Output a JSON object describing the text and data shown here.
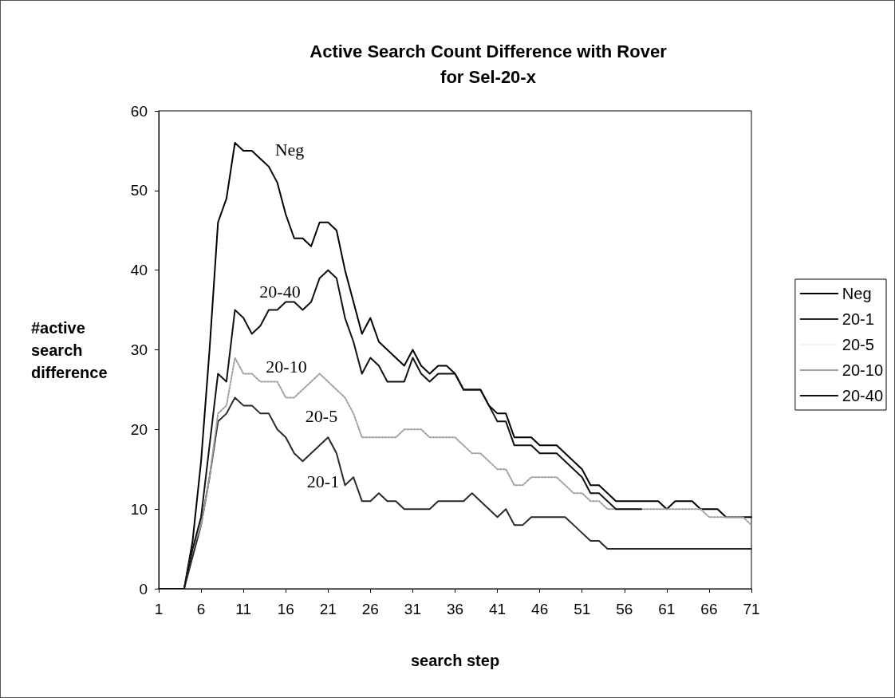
{
  "chart_data": {
    "type": "line",
    "title": "Active Search Count Difference with Rover\nfor Sel-20-x",
    "xlabel": "search step",
    "ylabel": "#active search difference",
    "x": [
      1,
      2,
      3,
      4,
      5,
      6,
      7,
      8,
      9,
      10,
      11,
      12,
      13,
      14,
      15,
      16,
      17,
      18,
      19,
      20,
      21,
      22,
      23,
      24,
      25,
      26,
      27,
      28,
      29,
      30,
      31,
      32,
      33,
      34,
      35,
      36,
      37,
      38,
      39,
      40,
      41,
      42,
      43,
      44,
      45,
      46,
      47,
      48,
      49,
      50,
      51,
      52,
      53,
      54,
      55,
      56,
      57,
      58,
      59,
      60,
      61,
      62,
      63,
      64,
      65,
      66,
      67,
      68,
      69,
      70,
      71
    ],
    "xlim": [
      1,
      71
    ],
    "xticks": [
      1,
      6,
      11,
      16,
      21,
      26,
      31,
      36,
      41,
      46,
      51,
      56,
      61,
      66,
      71
    ],
    "ylim": [
      0,
      60
    ],
    "yticks": [
      0,
      10,
      20,
      30,
      40,
      50,
      60
    ],
    "grid": false,
    "legend": "right",
    "marker": "none",
    "series": [
      {
        "name": "Neg",
        "color": "#000000",
        "line_style": "solid",
        "values": [
          0,
          0,
          0,
          0,
          6,
          16,
          30,
          46,
          49,
          56,
          55,
          55,
          54,
          53,
          51,
          47,
          44,
          44,
          43,
          46,
          46,
          45,
          40,
          36,
          32,
          34,
          31,
          30,
          29,
          28,
          30,
          28,
          27,
          28,
          28,
          27,
          25,
          25,
          25,
          23,
          22,
          22,
          19,
          19,
          19,
          18,
          18,
          18,
          17,
          16,
          15,
          13,
          13,
          12,
          11,
          11,
          11,
          11,
          11,
          11,
          10,
          11,
          11,
          11,
          10,
          10,
          10,
          9,
          9,
          9,
          9
        ]
      },
      {
        "name": "20-1",
        "color": "#2a2a2a",
        "line_style": "solid",
        "values": [
          0,
          0,
          0,
          0,
          4,
          8,
          14,
          21,
          22,
          24,
          23,
          23,
          22,
          22,
          20,
          19,
          17,
          16,
          17,
          18,
          19,
          17,
          13,
          14,
          11,
          11,
          12,
          11,
          11,
          10,
          10,
          10,
          10,
          11,
          11,
          11,
          11,
          12,
          11,
          10,
          9,
          10,
          8,
          8,
          9,
          9,
          9,
          9,
          9,
          8,
          7,
          6,
          6,
          5,
          5,
          5,
          5,
          5,
          5,
          5,
          5,
          5,
          5,
          5,
          5,
          5,
          5,
          5,
          5,
          5,
          5
        ]
      },
      {
        "name": "20-5",
        "color": "#f4f4f4",
        "line_style": "solid",
        "values": [
          null,
          null,
          null,
          null,
          null,
          null,
          null,
          null,
          null,
          null,
          null,
          null,
          null,
          null,
          null,
          null,
          null,
          null,
          null,
          null,
          null,
          null,
          null,
          null,
          null,
          null,
          null,
          null,
          null,
          null,
          null,
          null,
          null,
          null,
          null,
          null,
          null,
          null,
          null,
          null,
          null,
          null,
          null,
          null,
          null,
          null,
          null,
          null,
          null,
          null,
          null,
          null,
          null,
          null,
          null,
          null,
          null,
          null,
          null,
          null,
          null,
          null,
          null,
          null,
          null,
          null,
          null,
          null,
          null,
          null,
          null
        ]
      },
      {
        "name": "20-10",
        "color": "#a0a0a0",
        "line_style": "dotted",
        "values": [
          0,
          0,
          0,
          0,
          5,
          8,
          14,
          22,
          23,
          29,
          27,
          27,
          26,
          26,
          26,
          24,
          24,
          25,
          26,
          27,
          26,
          25,
          24,
          22,
          19,
          19,
          19,
          19,
          19,
          20,
          20,
          20,
          19,
          19,
          19,
          19,
          18,
          17,
          17,
          16,
          15,
          15,
          13,
          13,
          14,
          14,
          14,
          14,
          13,
          12,
          12,
          11,
          11,
          10,
          10,
          10,
          10,
          10,
          10,
          10,
          10,
          10,
          10,
          10,
          10,
          9,
          9,
          9,
          9,
          9,
          8
        ]
      },
      {
        "name": "20-40",
        "color": "#111111",
        "line_style": "solid",
        "values": [
          0,
          0,
          0,
          0,
          5,
          9,
          18,
          27,
          26,
          35,
          34,
          32,
          33,
          35,
          35,
          36,
          36,
          35,
          36,
          39,
          40,
          39,
          34,
          31,
          27,
          29,
          28,
          26,
          26,
          26,
          29,
          27,
          26,
          27,
          27,
          27,
          25,
          25,
          25,
          23,
          21,
          21,
          18,
          18,
          18,
          17,
          17,
          17,
          16,
          15,
          14,
          12,
          12,
          11,
          10,
          10,
          10,
          10,
          null,
          null,
          null,
          null,
          null,
          null,
          null,
          null,
          null,
          null,
          null,
          null,
          null
        ]
      }
    ],
    "annotations": [
      "Neg",
      "20-40",
      "20-10",
      "20-5",
      "20-1"
    ]
  }
}
